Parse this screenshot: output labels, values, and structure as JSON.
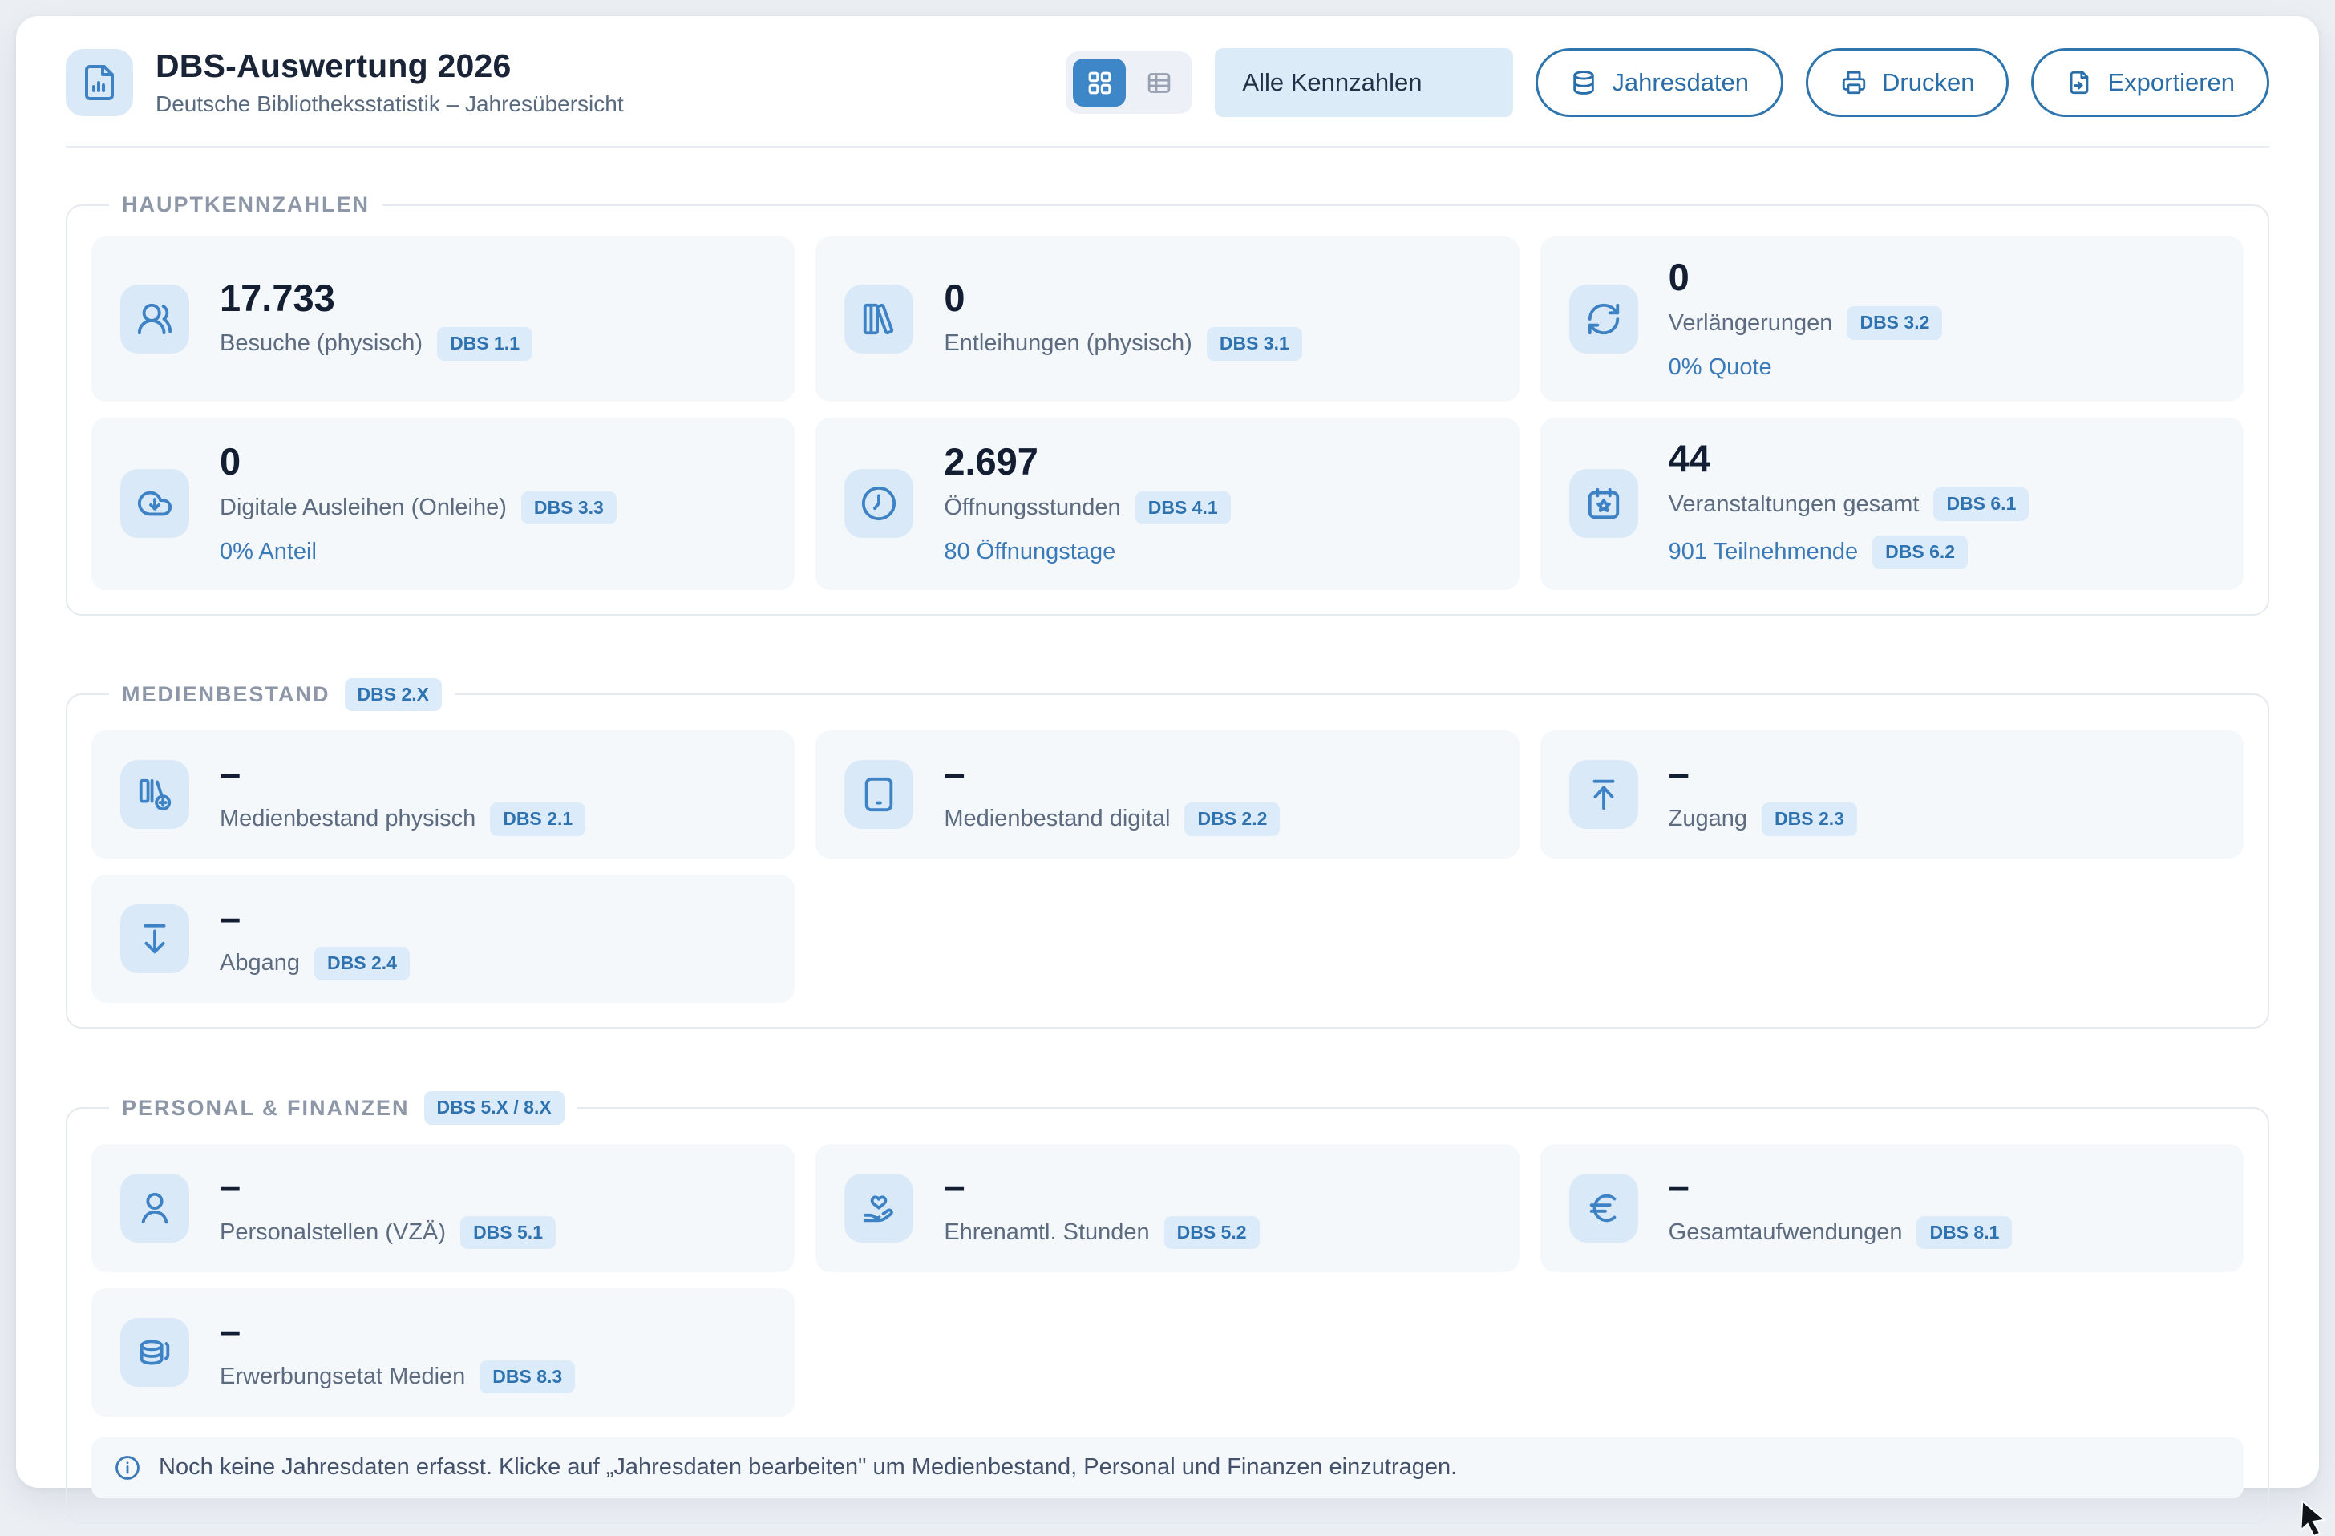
{
  "header": {
    "title": "DBS-Auswertung 2026",
    "subtitle": "Deutsche Bibliotheksstatistik – Jahresübersicht",
    "filter_value": "Alle Kennzahlen",
    "buttons": {
      "jahresdaten": "Jahresdaten",
      "drucken": "Drucken",
      "exportieren": "Exportieren"
    }
  },
  "colors": {
    "accent_blue": "#3d86c8",
    "icon_blue": "#3d82c4",
    "badge_bg": "#dcebf9",
    "badge_text": "#2e72b0",
    "value_dark": "#141e33",
    "card_bg": "#f5f8fb"
  },
  "sections": [
    {
      "id": "hauptkennzahlen",
      "legend": "HAUPTKENNZAHLEN",
      "badge": null,
      "cards": [
        {
          "icon": "users",
          "value": "17.733",
          "label": "Besuche (physisch)",
          "badge": "DBS 1.1"
        },
        {
          "icon": "library",
          "value": "0",
          "label": "Entleihungen (physisch)",
          "badge": "DBS 3.1"
        },
        {
          "icon": "refresh",
          "value": "0",
          "label": "Verlängerungen",
          "badge": "DBS 3.2",
          "sub": "0% Quote"
        },
        {
          "icon": "cloud-download",
          "value": "0",
          "label": "Digitale Ausleihen (Onleihe)",
          "badge": "DBS 3.3",
          "sub": "0% Anteil"
        },
        {
          "icon": "clock",
          "value": "2.697",
          "label": "Öffnungsstunden",
          "badge": "DBS 4.1",
          "sub": "80 Öffnungstage"
        },
        {
          "icon": "calendar-star",
          "value": "44",
          "label": "Veranstaltungen gesamt",
          "badge": "DBS 6.1",
          "sub": "901 Teilnehmende",
          "sub_badge": "DBS 6.2"
        }
      ]
    },
    {
      "id": "medienbestand",
      "legend": "MEDIENBESTAND",
      "badge": "DBS 2.X",
      "cards": [
        {
          "icon": "library-plus",
          "value": "–",
          "label": "Medienbestand physisch",
          "badge": "DBS 2.1"
        },
        {
          "icon": "tablet",
          "value": "–",
          "label": "Medienbestand digital",
          "badge": "DBS 2.2"
        },
        {
          "icon": "arrow-up-to-line",
          "value": "–",
          "label": "Zugang",
          "badge": "DBS 2.3"
        },
        {
          "icon": "arrow-down-from-line",
          "value": "–",
          "label": "Abgang",
          "badge": "DBS 2.4"
        }
      ]
    },
    {
      "id": "personal-finanzen",
      "legend": "PERSONAL & FINANZEN",
      "badge": "DBS 5.X / 8.X",
      "cards": [
        {
          "icon": "user-round",
          "value": "–",
          "label": "Personalstellen (VZÄ)",
          "badge": "DBS 5.1"
        },
        {
          "icon": "hand-heart",
          "value": "–",
          "label": "Ehrenamtl. Stunden",
          "badge": "DBS 5.2"
        },
        {
          "icon": "euro",
          "value": "–",
          "label": "Gesamtaufwendungen",
          "badge": "DBS 8.1"
        },
        {
          "icon": "coins",
          "value": "–",
          "label": "Erwerbungsetat Medien",
          "badge": "DBS 8.3"
        }
      ],
      "note": "Noch keine Jahresdaten erfasst. Klicke auf „Jahresdaten bearbeiten\" um Medienbestand, Personal und Finanzen einzutragen."
    }
  ]
}
